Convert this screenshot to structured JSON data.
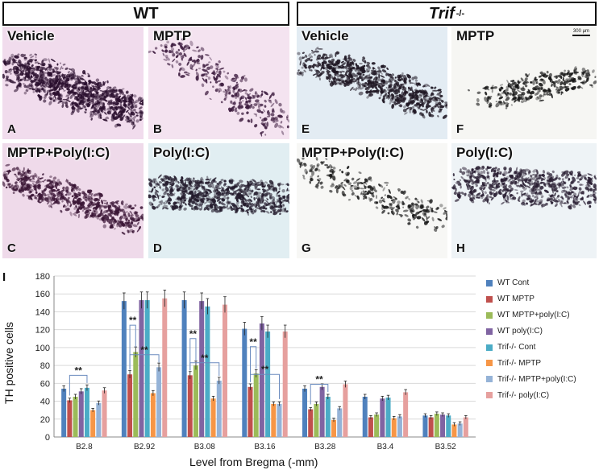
{
  "headers": {
    "wt": "WT",
    "trif_main": "Trif",
    "trif_sup": "-/-"
  },
  "panels": [
    {
      "title": "Vehicle",
      "letter": "A"
    },
    {
      "title": "MPTP",
      "letter": "B"
    },
    {
      "title": "Vehicle",
      "letter": "E"
    },
    {
      "title": "MPTP",
      "letter": "F"
    },
    {
      "title": "MPTP+Poly(I:C)",
      "letter": "C"
    },
    {
      "title": "Poly(I:C)",
      "letter": "D"
    },
    {
      "title": "MPTP+Poly(I:C)",
      "letter": "G"
    },
    {
      "title": "Poly(I:C)",
      "letter": "H"
    }
  ],
  "scale_bar": "300 µm",
  "chart_label": "I",
  "chart_data": {
    "type": "bar",
    "ylabel": "TH positive cells",
    "xlabel": "Level from Bregma (-mm)",
    "ylim": [
      0,
      180
    ],
    "yticks": [
      0,
      20,
      40,
      60,
      80,
      100,
      120,
      140,
      160,
      180
    ],
    "categories": [
      "B2.8",
      "B2.92",
      "B3.08",
      "B3.16",
      "B3.28",
      "B3.4",
      "B3.52"
    ],
    "series": [
      {
        "name": "WT Cont",
        "color": "#4f81bd",
        "values": [
          54,
          152,
          153,
          121,
          54,
          45,
          24
        ]
      },
      {
        "name": " WT MPTP",
        "color": "#c0504d",
        "values": [
          41,
          70,
          69,
          56,
          31,
          22,
          22
        ]
      },
      {
        "name": "WT MPTP+poly(I:C)",
        "color": "#9bbb59",
        "values": [
          45,
          95,
          80,
          71,
          37,
          25,
          26
        ]
      },
      {
        "name": "WT poly(I:C)",
        "color": "#8064a2",
        "values": [
          51,
          153,
          152,
          127,
          56,
          43,
          25
        ]
      },
      {
        "name": "Trif-/- Cont",
        "color": "#4bacc6",
        "values": [
          55,
          153,
          146,
          118,
          45,
          44,
          24
        ]
      },
      {
        "name": "Trif-/- MPTP",
        "color": "#f79646",
        "values": [
          30,
          49,
          43,
          37,
          19,
          21,
          14
        ]
      },
      {
        "name": "Trif-/- MPTP+poly(I:C)",
        "color": "#95b3d7",
        "values": [
          38,
          78,
          63,
          37,
          32,
          23,
          15
        ]
      },
      {
        "name": "Trif-/- poly(I:C)",
        "color": "#e6a09e",
        "values": [
          52,
          155,
          148,
          118,
          59,
          50,
          22
        ]
      }
    ],
    "significance": [
      {
        "category": "B2.8",
        "from": " WT MPTP",
        "to": "Trif-/- Cont",
        "label": "**"
      },
      {
        "category": "B2.92",
        "from": " WT MPTP",
        "to": "Trif-/- MPTP+poly(I:C)",
        "label": "**"
      },
      {
        "category": "B2.92",
        "from": " WT MPTP",
        "to": "WT MPTP+poly(I:C)",
        "label": "**"
      },
      {
        "category": "B3.08",
        "from": " WT MPTP",
        "to": "Trif-/- MPTP+poly(I:C)",
        "label": "**"
      },
      {
        "category": "B3.08",
        "from": " WT MPTP",
        "to": "WT MPTP+poly(I:C)",
        "label": "**"
      },
      {
        "category": "B3.16",
        "from": " WT MPTP",
        "to": "Trif-/- MPTP+poly(I:C)",
        "label": "**"
      },
      {
        "category": "B3.16",
        "from": " WT MPTP",
        "to": "WT MPTP+poly(I:C)",
        "label": "**"
      },
      {
        "category": "B3.28",
        "from": " WT MPTP",
        "to": "Trif-/- Cont",
        "label": "**"
      }
    ]
  }
}
